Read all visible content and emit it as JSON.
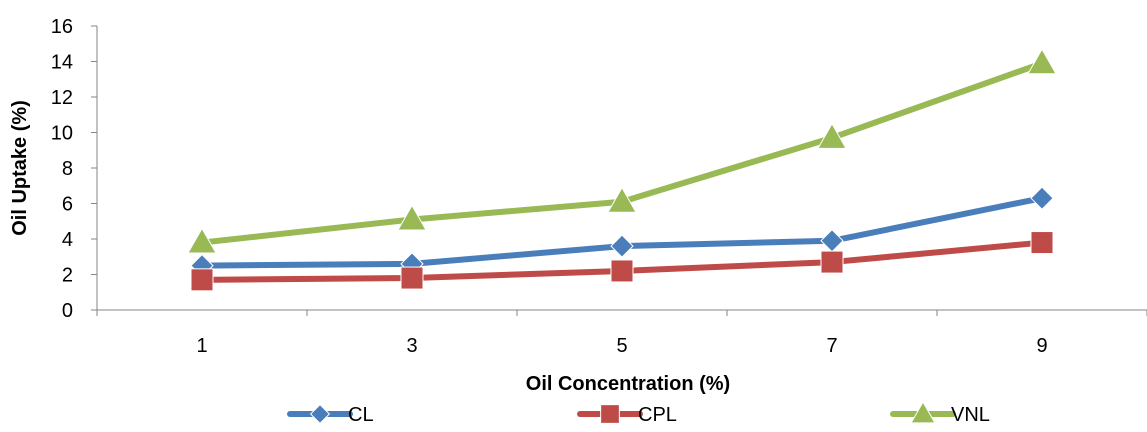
{
  "chart_data": {
    "type": "line",
    "title": "",
    "xlabel": "Oil Concentration (%)",
    "ylabel": "Oil Uptake (%)",
    "categories": [
      "1",
      "3",
      "5",
      "7",
      "9"
    ],
    "ylim": [
      0,
      16
    ],
    "yticks": [
      "0",
      "2",
      "4",
      "6",
      "8",
      "10",
      "12",
      "14",
      "16"
    ],
    "grid": false,
    "legend": "bottom",
    "series": [
      {
        "name": "CL",
        "values": [
          2.5,
          2.6,
          3.6,
          3.9,
          6.3
        ],
        "color": "#4a7ebb",
        "marker": "diamond"
      },
      {
        "name": "CPL",
        "values": [
          1.7,
          1.8,
          2.2,
          2.7,
          3.8
        ],
        "color": "#be4b48",
        "marker": "square"
      },
      {
        "name": "VNL",
        "values": [
          3.8,
          5.1,
          6.1,
          9.7,
          13.9
        ],
        "color": "#98b954",
        "marker": "triangle"
      }
    ]
  }
}
